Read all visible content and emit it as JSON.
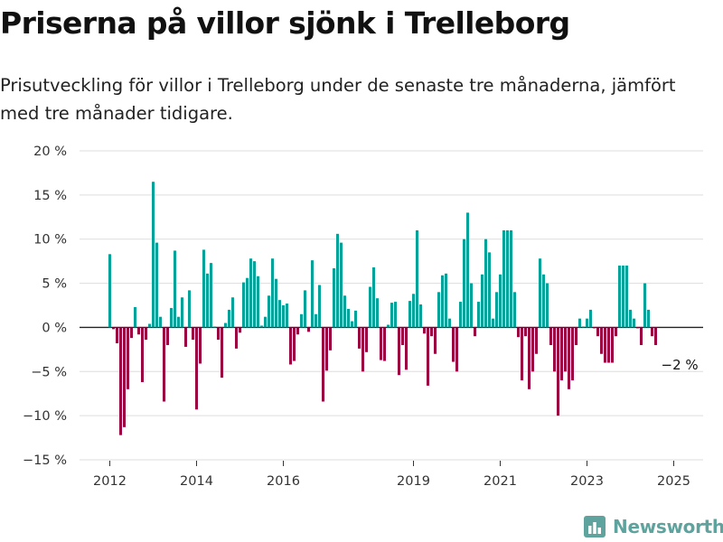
{
  "title": "Priserna på villor sjönk i Trelleborg",
  "subtitle": "Prisutveckling för villor i Trelleborg under de senaste tre månaderna, jämfört med tre månader tidigare.",
  "brand": "Newsworthy",
  "colors": {
    "positive": "#00a39a",
    "negative": "#9b0041",
    "grid": "#dddddd",
    "brand": "#5ea39d"
  },
  "chart_data": {
    "type": "bar",
    "title": "Priserna på villor sjönk i Trelleborg",
    "xlabel": "",
    "ylabel": "",
    "ylim": [
      -15,
      20
    ],
    "y_ticks": [
      20,
      15,
      10,
      5,
      0,
      -5,
      -10,
      -15
    ],
    "y_tick_labels": [
      "20 %",
      "15 %",
      "10 %",
      "5 %",
      "0 %",
      "−5 %",
      "−10 %",
      "−15 %"
    ],
    "x_tick_labels": [
      "2012",
      "2014",
      "2016",
      "2019",
      "2021",
      "2023",
      "2025"
    ],
    "x_tick_years": [
      2012,
      2014,
      2016,
      2019,
      2021,
      2023,
      2025
    ],
    "grid": true,
    "legend": "none",
    "start": "2012-01",
    "frequency": "monthly",
    "values": [
      8.3,
      -0.2,
      -1.8,
      -12.2,
      -11.3,
      -7.0,
      -1.2,
      2.3,
      -0.8,
      -6.2,
      -1.4,
      0.4,
      16.5,
      9.6,
      1.2,
      -8.4,
      -2.0,
      2.2,
      8.7,
      1.2,
      3.4,
      -2.2,
      4.2,
      -1.4,
      -9.3,
      -4.1,
      8.8,
      6.1,
      7.3,
      0.1,
      -1.4,
      -5.7,
      0.5,
      2.0,
      3.4,
      -2.4,
      -0.6,
      5.1,
      5.6,
      7.8,
      7.5,
      5.8,
      0.2,
      1.2,
      3.6,
      7.8,
      5.5,
      3.1,
      2.5,
      2.7,
      -4.2,
      -3.8,
      -0.8,
      1.5,
      4.2,
      -0.5,
      7.6,
      1.5,
      4.8,
      -8.4,
      -4.9,
      -2.6,
      6.7,
      10.6,
      9.6,
      3.6,
      2.1,
      0.7,
      1.9,
      -2.4,
      -5.0,
      -2.8,
      4.6,
      6.8,
      3.3,
      -3.7,
      -3.8,
      0.3,
      2.8,
      2.9,
      -5.4,
      -2.0,
      -4.8,
      3.0,
      3.8,
      11.0,
      2.6,
      -0.7,
      -6.6,
      -1.0,
      -3.0,
      4.0,
      5.9,
      6.1,
      1.0,
      -3.9,
      -5.0,
      2.9,
      10.0,
      13.0,
      5.0,
      -1.0,
      2.9,
      6.0,
      10.0,
      8.5,
      1.0,
      4.0,
      6.0,
      11.0,
      11.0,
      11.0,
      4.0,
      -1.1,
      -6.0,
      -1.0,
      -7.0,
      -5.0,
      -3.0,
      7.8,
      6.0,
      5.0,
      -2.0,
      -5.0,
      -10.0,
      -6.0,
      -5.0,
      -7.0,
      -6.0,
      -2.0,
      1.0,
      0.1,
      1.0,
      2.0,
      -0.1,
      -1.0,
      -3.0,
      -4.0,
      -4.0,
      -4.0,
      -1.0,
      7.0,
      7.0,
      7.0,
      2.0,
      1.0,
      -0.1,
      -2.0,
      5.0,
      2.0,
      -1.0,
      -2.0
    ],
    "annotations": [
      {
        "text": "−2 %",
        "x": "2025-03",
        "y": -2.0
      }
    ]
  }
}
